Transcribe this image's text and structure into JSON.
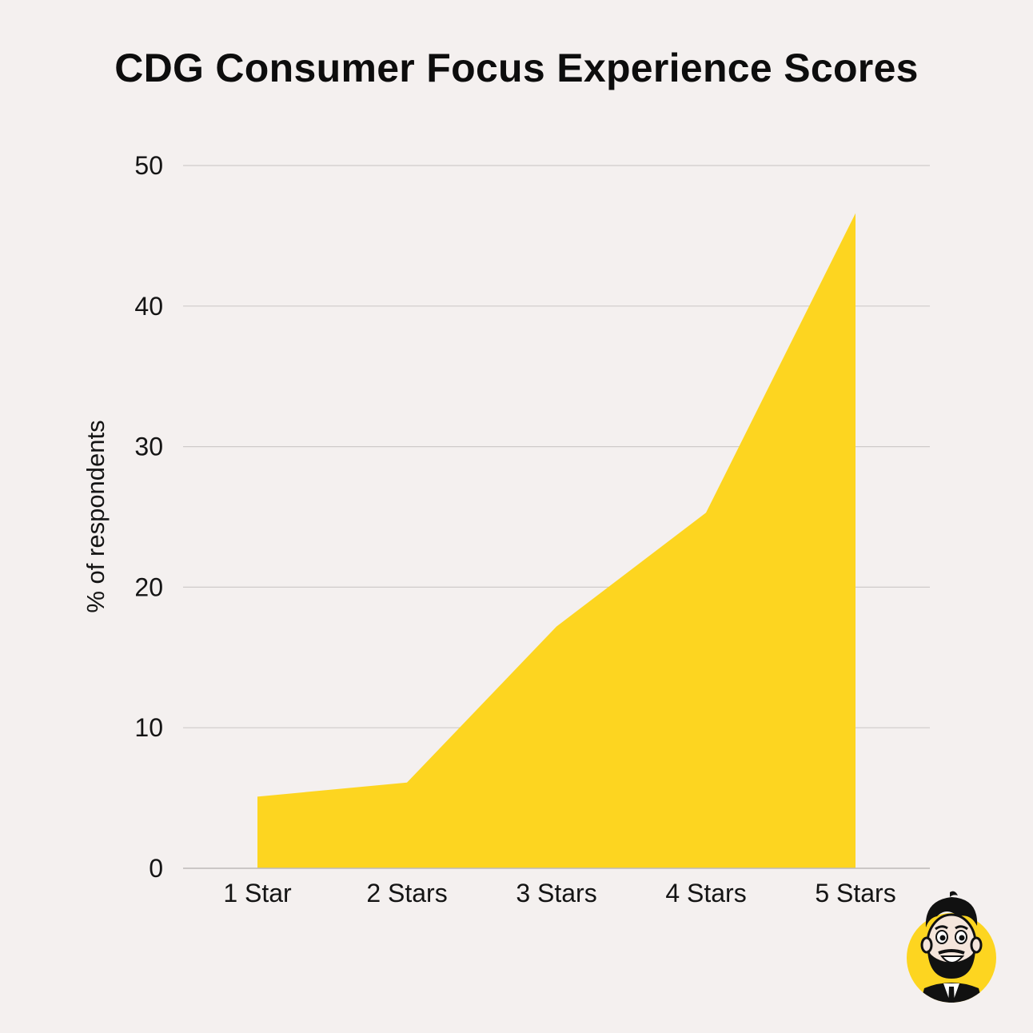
{
  "title": "CDG Consumer Focus Experience Scores",
  "chart_data": {
    "type": "area",
    "title": "CDG Consumer Focus Experience Scores",
    "xlabel": "",
    "ylabel": "% of respondents",
    "categories": [
      "1 Star",
      "2 Stars",
      "3 Stars",
      "4 Stars",
      "5 Stars"
    ],
    "values": [
      5.1,
      6.1,
      17.2,
      25.3,
      46.6
    ],
    "ylim": [
      0,
      50
    ],
    "yticks": [
      0,
      10,
      20,
      30,
      40,
      50
    ],
    "grid": true,
    "legend": "none",
    "fill_color": "#fdd520",
    "gridline_color": "#cfcbca"
  },
  "colors": {
    "background": "#f4f0ef",
    "accent": "#fdd520"
  },
  "logo": {
    "icon": "bearded-man-mascot-icon"
  }
}
